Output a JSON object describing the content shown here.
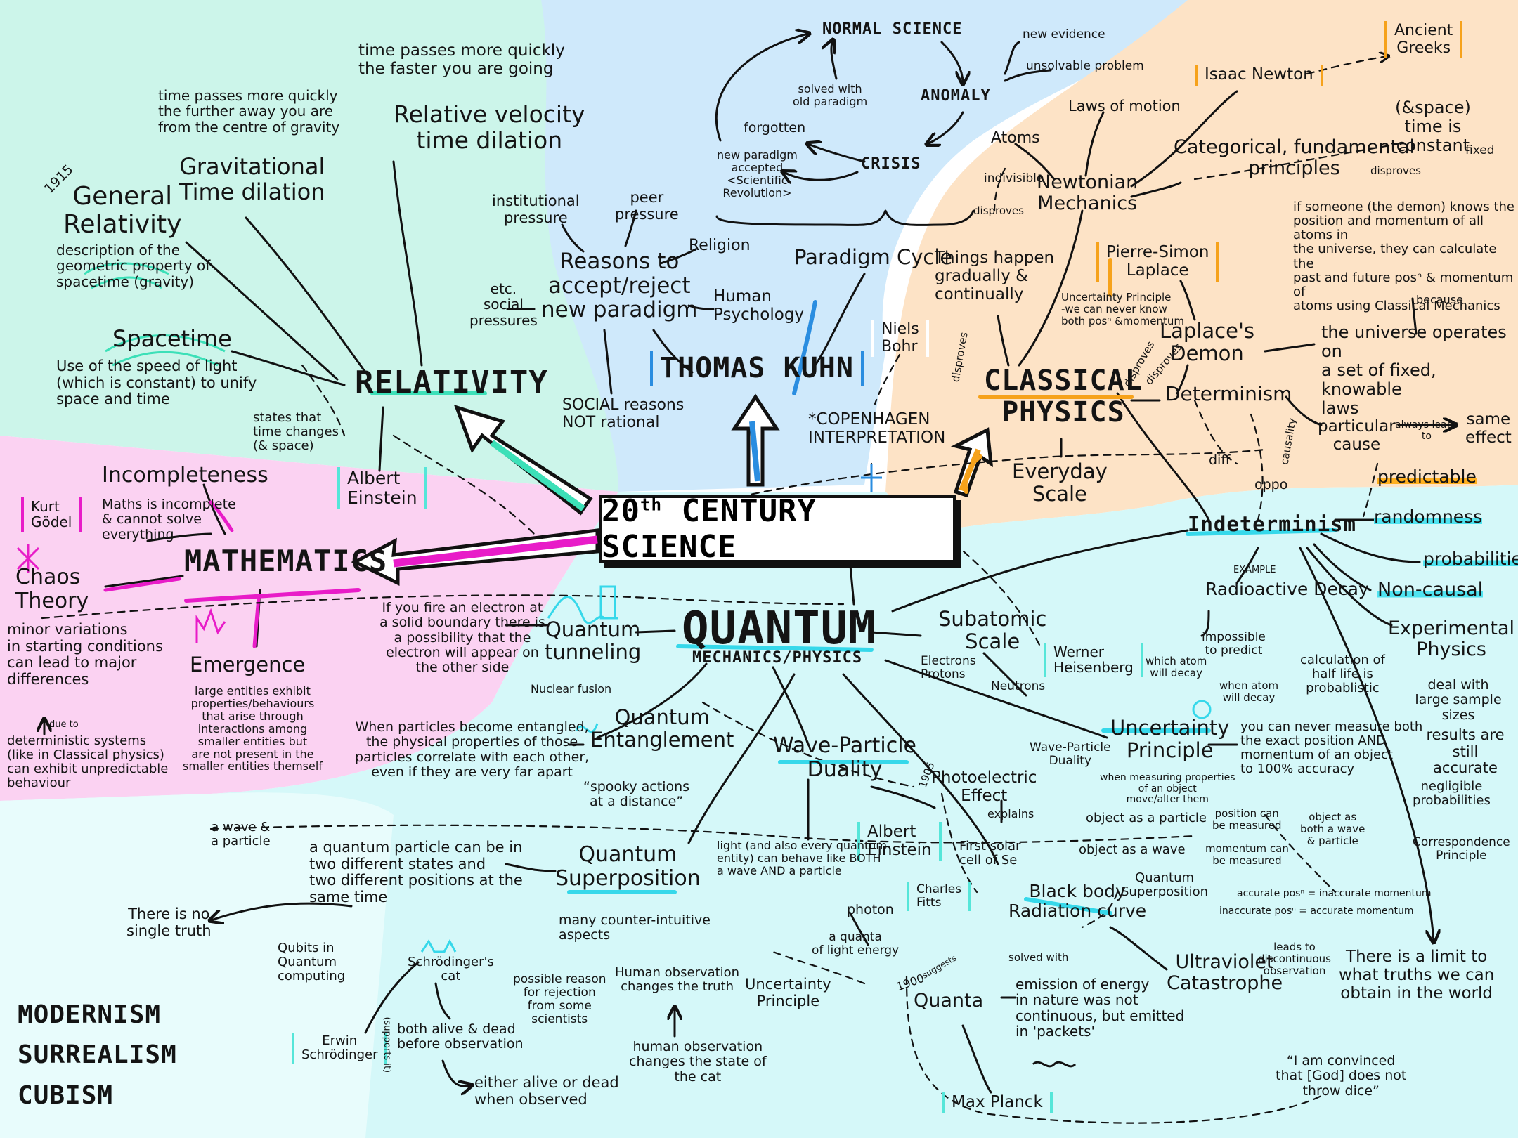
{
  "center": {
    "title": "20",
    "title_sup": "th",
    "title_rest": "CENTURY SCIENCE"
  },
  "colors": {
    "mint": "#ccf5ea",
    "sky": "#cfe9fb",
    "peach": "#fde3c6",
    "pink": "#fbd2f2",
    "cyan": "#d5f8f9",
    "teal": "#3ce0b8",
    "magenta": "#e81cc8",
    "blue": "#2a8de0",
    "orange": "#f6a21b",
    "cyan_accent": "#36d8ea"
  },
  "relativity": {
    "title": "RELATIVITY",
    "year": "1915",
    "general_relativity": "General\nRelativity",
    "general_desc": "description of the\ngeometric property of\nspacetime (gravity)",
    "grav_dilation": "Gravitational\nTime dilation",
    "grav_note": "time passes more quickly\nthe further away you are\nfrom the centre of gravity",
    "rel_velocity": "Relative velocity\ntime dilation",
    "vel_note": "time passes more quickly\nthe faster you are going",
    "spacetime": "Spacetime",
    "spacetime_desc": "Use of the speed of light\n(which is constant) to unify\nspace and time",
    "states": "states that\ntime changes\n(& space)",
    "einstein": "Albert\nEinstein"
  },
  "kuhn": {
    "name": "THOMAS KUHN",
    "normal_science": "NORMAL SCIENCE",
    "anomaly": "ANOMALY",
    "crisis": "CRISIS",
    "forgotten": "forgotten",
    "solved": "solved with\nold paradigm",
    "new_paradigm": "new paradigm\naccepted\n<Scientific\nRevolution>",
    "new_evidence": "new evidence",
    "unsolvable": "unsolvable problem",
    "paradigm_cycle": "Paradigm Cycle",
    "reasons": "Reasons to\naccept/reject\nnew paradigm",
    "institutional": "institutional\npressure",
    "peer": "peer\npressure",
    "religion": "Religion",
    "human_psych": "Human\nPsychology",
    "social_pressures": "etc.\nsocial\npressures",
    "social_reasons": "SOCIAL reasons\nNOT rational"
  },
  "classical": {
    "title": "CLASSICAL\nPHYSICS",
    "newtonian": "Newtonian\nMechanics",
    "atoms": "Atoms",
    "indivisible": "indivisible",
    "disproves": "disproves",
    "laws_of_motion": "Laws of motion",
    "newton": "Isaac Newton",
    "ancient_greeks": "Ancient\nGreeks",
    "categorical": "Categorical, fundamental\nprinciples",
    "time_constant": "(&space)\ntime is\nconstant",
    "fixed": "fixed",
    "things_happen": "Things happen\ngradually &\ncontinually",
    "laplace": "Pierre-Simon\nLaplace",
    "uncertainty_note": "Uncertainty Principle\n-we can never know\nboth posⁿ &momentum",
    "laplaces_demon": "Laplace's\nDemon",
    "demon_desc": "if someone (the demon) knows the\nposition and momentum of all atoms in\nthe universe, they can calculate the\npast and future posⁿ & momentum of\natoms using Classical Mechanics",
    "because": "because",
    "universe_fixed": "the universe operates on\na set of fixed, knowable\nlaws",
    "determinism": "Determinism",
    "particular_cause": "particular\ncause",
    "always_leads": "always leads\nto",
    "same_effect": "same\neffect",
    "predictable": "predictable",
    "causality": "causality",
    "everyday": "Everyday\nScale",
    "diff": "diff",
    "oppo": "oppo",
    "niels_bohr": "Niels\nBohr",
    "copenhagen": "*COPENHAGEN\nINTERPRETATION"
  },
  "mathematics": {
    "title": "MATHEMATICS",
    "incompleteness": "Incompleteness",
    "incompleteness_desc": "Maths is incomplete\n& cannot solve\neverything",
    "godel": "Kurt\nGödel",
    "chaos": "Chaos\nTheory",
    "chaos_desc": "minor variations\nin starting conditions\ncan lead to major\ndifferences",
    "due_to": "due to",
    "deterministic": "deterministic systems\n(like in Classical physics)\ncan exhibit unpredictable\nbehaviour",
    "emergence": "Emergence",
    "emergence_desc": "large entities exhibit\nproperties/behaviours\nthat arise through\ninteractions among\nsmaller entities but\nare not present in the\nsmaller entities themself"
  },
  "quantum": {
    "title": "QUANTUM",
    "subtitle": "MECHANICS/PHYSICS",
    "tunneling": "Quantum\ntunneling",
    "tunneling_desc": "If you fire an electron at\na solid boundary there is\na possibility that the\nelectron will appear on\nthe other side",
    "nuclear_fusion": "Nuclear fusion",
    "entanglement": "Quantum\nEntanglement",
    "entanglement_desc": "When particles become entangled,\nthe physical properties of those\nparticles correlate with each other,\neven if they are very far apart",
    "spooky": "“spooky actions\nat a distance”",
    "wave_particle": "Wave-Particle\nDuality",
    "photoelectric": "Photoelectric\nEffect",
    "year_1905": "1905",
    "explains": "explains",
    "solar_cell": "First solar\ncell of Se",
    "einstein2": "Albert\nEinstein",
    "charles_fitts": "Charles\nFitts",
    "light_desc": "light (and also every quantum\nentity) can behave like BOTH\na wave AND a particle",
    "photon": "photon",
    "quanta_of_light": "a quanta\nof light energy",
    "superposition": "Quantum\nSuperposition",
    "superposition_desc": "a quantum particle can be in\ntwo different states and\ntwo different positions at the\nsame time",
    "wave_and_particle": "a wave &\na particle",
    "no_single_truth": "There is no\nsingle truth",
    "qubits": "Qubits in\nQuantum\ncomputing",
    "schrodinger_cat": "Schrödinger's\ncat",
    "schrodinger": "Erwin\nSchrödinger",
    "supports_it": "(supports it)",
    "alive_dead": "both alive & dead\nbefore observation",
    "either": "either alive or dead\nwhen observed",
    "counter_intuitive": "many counter-intuitive\naspects",
    "possible_reason": "possible reason\nfor rejection\nfrom some\nscientists",
    "human_obs1": "Human observation\nchanges the truth",
    "uncertainty_small": "Uncertainty\nPrinciple",
    "human_obs2": "human observation\nchanges the state of\nthe cat",
    "subatomic": "Subatomic\nScale",
    "electrons": "Electrons\nProtons",
    "neutrons": "Neutrons",
    "heisenberg": "Werner\nHeisenberg",
    "uncertainty": "Uncertainty\nPrinciple",
    "uncertainty_desc": "you can never measure both\nthe exact position AND\nmomentum of an object\nto 100% accuracy",
    "when_measuring": "when measuring properties\nof an object\nmove/alter them",
    "wp_duality2": "Wave-Particle\nDuality",
    "object_particle": "object as a particle",
    "object_wave": "object as a wave",
    "position_measured": "position can\nbe measured",
    "momentum_measured": "momentum can\nbe measured",
    "object_both": "object as\nboth a wave\n& particle",
    "quantum_superposition2": "Quantum\nSuperposition",
    "accurate1": "accurate posⁿ = inaccurate momentum",
    "accurate2": "inaccurate posⁿ = accurate momentum",
    "leads_to": "leads to\ndiscontinuous\nobservation",
    "limit": "There is a limit to\nwhat truths we can\nobtain in the world",
    "god_quote": "“I am convinced\nthat [God] does not\nthrow dice”",
    "black_body": "Black body\nRadiation curve",
    "uv_catastrophe": "Ultraviolet\nCatastrophe",
    "quanta": "Quanta",
    "year_1900": "1900",
    "suggests": "suggests",
    "solved_with": "solved with",
    "emission": "emission of energy\nin nature was not\ncontinuous, but emitted\nin 'packets'",
    "max_planck": "Max Planck"
  },
  "indeterminism": {
    "title": "Indeterminism",
    "randomness": "randomness",
    "probabilities": "probabilities",
    "non_causal": "Non-causal",
    "example": "EXAMPLE",
    "radioactive": "Radioactive Decay",
    "impossible": "impossible\nto predict",
    "which_atom": "which atom\nwill decay",
    "when_atom": "when atom\nwill decay",
    "half_life": "calculation of\nhalf life is\nprobablistic",
    "experimental": "Experimental\nPhysics",
    "large_samples": "deal with\nlarge sample sizes",
    "still_accurate": "results are still\naccurate",
    "negligible": "negligible\nprobabilities",
    "correspondence": "Correspondence\nPrinciple"
  },
  "movements": {
    "line1": "MODERNISM",
    "line2": "SURREALISM",
    "line3": "CUBISM"
  }
}
